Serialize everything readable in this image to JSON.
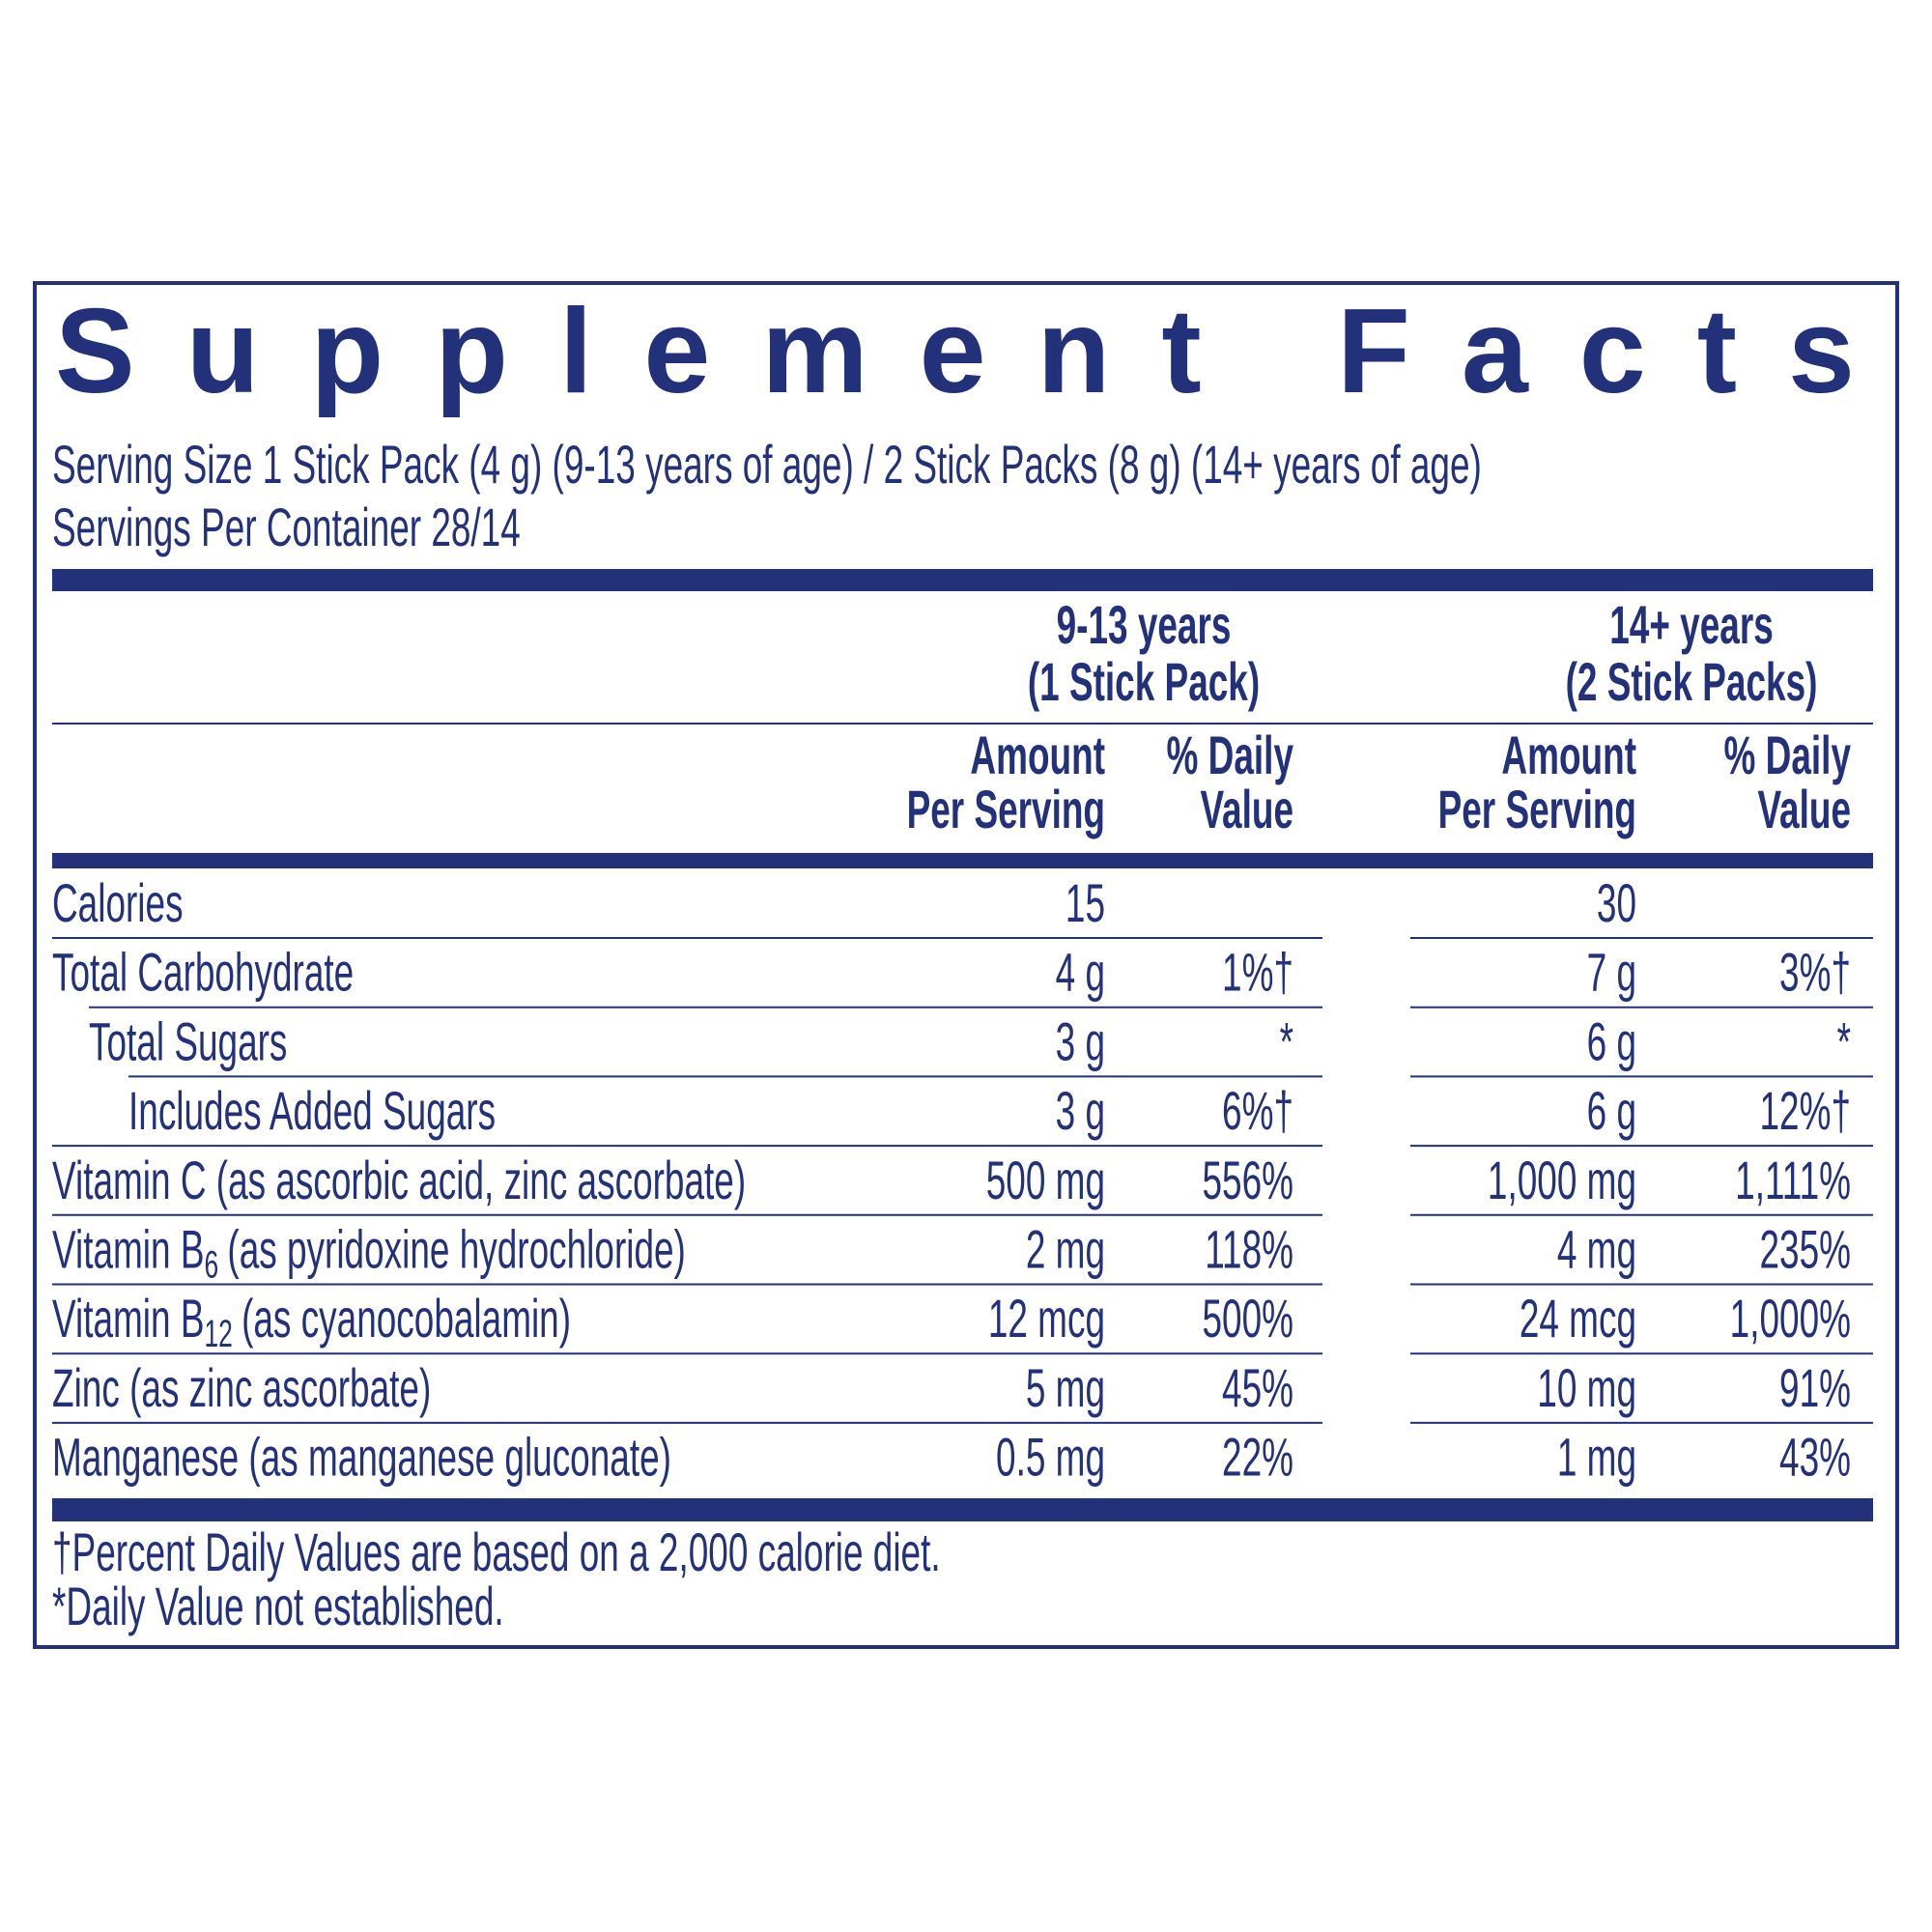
{
  "header": {
    "title": "Supplement Facts",
    "serving_size": "Serving Size 1 Stick Pack (4 g) (9-13 years of age) / 2 Stick Packs (8 g) (14+ years of age)",
    "servings_per_container": "Servings Per Container 28/14"
  },
  "table": {
    "groups": [
      {
        "line1": "9-13 years",
        "line2": "(1 Stick Pack)"
      },
      {
        "line1": "14+ years",
        "line2": "(2 Stick Packs)"
      }
    ],
    "columns": [
      [
        "Amount",
        "Per Serving"
      ],
      [
        "% Daily",
        "Value"
      ],
      [
        "Amount",
        "Per Serving"
      ],
      [
        "% Daily",
        "Value"
      ]
    ],
    "rows": [
      {
        "label": "Calories",
        "cells": [
          "15",
          null,
          "30",
          null
        ]
      },
      {
        "label": "Total Carbohydrate",
        "cells": [
          "4 g",
          "1%†",
          "7 g",
          "3%†"
        ]
      },
      {
        "label": "Total Sugars",
        "cells": [
          "3 g",
          "*",
          "6 g",
          "*"
        ]
      },
      {
        "label": "Includes Added Sugars",
        "cells": [
          "3 g",
          "6%†",
          "6 g",
          "12%†"
        ]
      },
      {
        "label": "Vitamin C (as ascorbic acid, zinc ascorbate)",
        "cells": [
          "500 mg",
          "556%",
          "1,000 mg",
          "1,111%"
        ]
      },
      {
        "label": "Vitamin B",
        "sub": "6",
        "desc": "(as pyridoxine hydrochloride)",
        "cells": [
          "2 mg",
          "118%",
          "4 mg",
          "235%"
        ]
      },
      {
        "label": "Vitamin B",
        "sub": "12",
        "desc": "(as cyanocobalamin)",
        "cells": [
          "12 mcg",
          "500%",
          "24 mcg",
          "1,000%"
        ]
      },
      {
        "label": "Zinc (as zinc ascorbate)",
        "cells": [
          "5 mg",
          "45%",
          "10 mg",
          "91%"
        ]
      },
      {
        "label": "Manganese (as manganese gluconate)",
        "cells": [
          "0.5 mg",
          "22%",
          "1 mg",
          "43%"
        ]
      }
    ]
  },
  "footnotes": [
    "†Percent Daily Values are based on a 2,000 calorie diet.",
    "*Daily Value not established."
  ]
}
